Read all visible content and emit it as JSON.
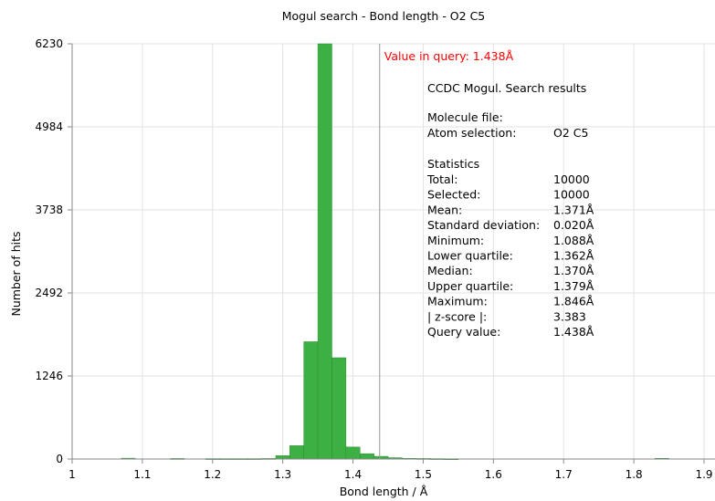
{
  "chart_data": {
    "type": "bar",
    "title": "Mogul search - Bond length - O2 C5",
    "xlabel": "Bond length / Å",
    "ylabel": "Number of hits",
    "xlim": [
      1.0,
      1.9
    ],
    "ylim": [
      0,
      6230
    ],
    "x_ticks": [
      1.0,
      1.1,
      1.2,
      1.3,
      1.4,
      1.5,
      1.6,
      1.7,
      1.8,
      1.9
    ],
    "x_tick_labels": [
      "1",
      "1.1",
      "1.2",
      "1.3",
      "1.4",
      "1.5",
      "1.6",
      "1.7",
      "1.8",
      "1.9"
    ],
    "y_ticks": [
      0,
      1246,
      2492,
      3738,
      4984,
      6230
    ],
    "y_tick_labels": [
      "0",
      "1246",
      "2492",
      "3738",
      "4984",
      "6230"
    ],
    "grid": true,
    "bar_color": "#3cb043",
    "bin_width": 0.02,
    "bins": [
      {
        "start": 1.07,
        "count": 12
      },
      {
        "start": 1.14,
        "count": 8
      },
      {
        "start": 1.19,
        "count": 6
      },
      {
        "start": 1.21,
        "count": 6
      },
      {
        "start": 1.23,
        "count": 6
      },
      {
        "start": 1.25,
        "count": 6
      },
      {
        "start": 1.27,
        "count": 8
      },
      {
        "start": 1.29,
        "count": 50
      },
      {
        "start": 1.31,
        "count": 200
      },
      {
        "start": 1.33,
        "count": 1760
      },
      {
        "start": 1.35,
        "count": 6230
      },
      {
        "start": 1.37,
        "count": 1520
      },
      {
        "start": 1.39,
        "count": 180
      },
      {
        "start": 1.41,
        "count": 80
      },
      {
        "start": 1.43,
        "count": 40
      },
      {
        "start": 1.45,
        "count": 20
      },
      {
        "start": 1.47,
        "count": 10
      },
      {
        "start": 1.49,
        "count": 8
      },
      {
        "start": 1.51,
        "count": 6
      },
      {
        "start": 1.53,
        "count": 4
      },
      {
        "start": 1.83,
        "count": 10
      }
    ],
    "query_line": {
      "x": 1.438,
      "label": "Value in query: 1.438Å",
      "color": "#ff0000",
      "line_color": "#9a9a9a"
    }
  },
  "stats_panel": {
    "heading": "CCDC Mogul.  Search results",
    "molecule_file_label": "Molecule file:",
    "atom_selection_label": "Atom selection:",
    "atom_selection_value": "O2 C5",
    "statistics_heading": "Statistics",
    "rows": [
      {
        "label": "Total:",
        "value": "10000"
      },
      {
        "label": "Selected:",
        "value": "10000"
      },
      {
        "label": "Mean:",
        "value": "1.371Å"
      },
      {
        "label": "Standard deviation:",
        "value": "0.020Å"
      },
      {
        "label": "Minimum:",
        "value": "1.088Å"
      },
      {
        "label": "Lower quartile:",
        "value": "1.362Å"
      },
      {
        "label": "Median:",
        "value": "1.370Å"
      },
      {
        "label": "Upper quartile:",
        "value": "1.379Å"
      },
      {
        "label": "Maximum:",
        "value": "1.846Å"
      },
      {
        "label": "| z-score |:",
        "value": "3.383"
      },
      {
        "label": "Query value:",
        "value": "1.438Å"
      }
    ]
  }
}
